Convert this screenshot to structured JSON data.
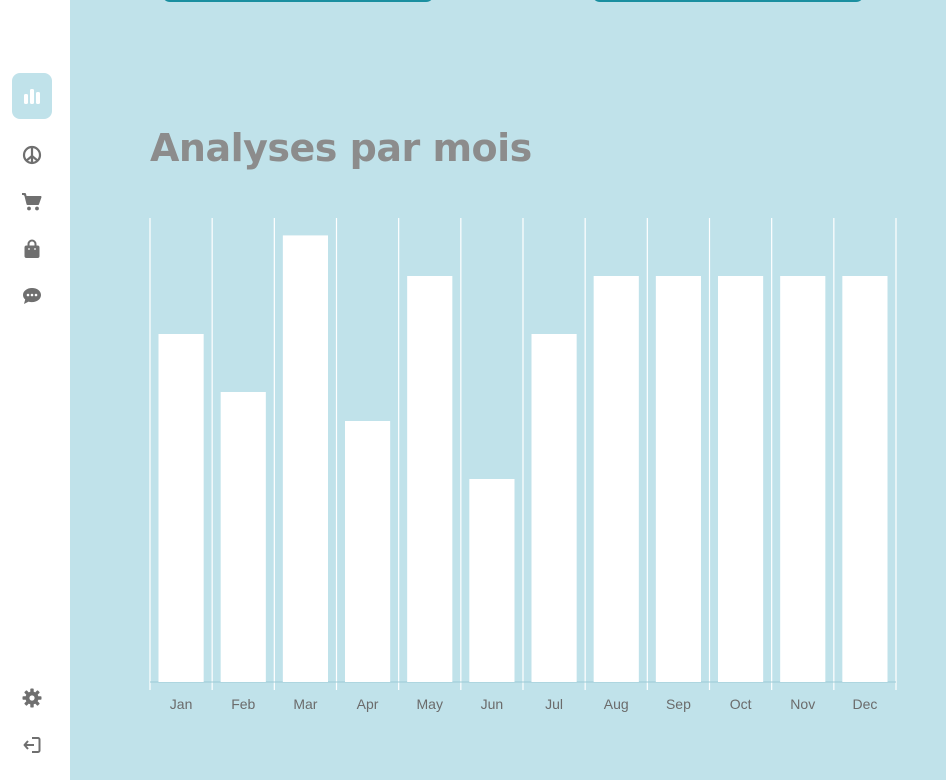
{
  "sidebar": {
    "items": [
      {
        "icon": "bar-chart-icon",
        "active": true
      },
      {
        "icon": "peace-icon"
      },
      {
        "icon": "cart-icon"
      },
      {
        "icon": "shopping-bag-icon"
      },
      {
        "icon": "chat-icon"
      }
    ],
    "bottom_items": [
      {
        "icon": "gear-icon"
      },
      {
        "icon": "logout-icon"
      }
    ]
  },
  "main": {
    "title": "Analyses par mois"
  },
  "colors": {
    "background": "#c0e2ea",
    "bar": "#ffffff",
    "title": "#8c8c8c",
    "accent": "#1a8fa0"
  },
  "chart_data": {
    "type": "bar",
    "categories": [
      "Jan",
      "Feb",
      "Mar",
      "Apr",
      "May",
      "Jun",
      "Jul",
      "Aug",
      "Sep",
      "Oct",
      "Nov",
      "Dec"
    ],
    "values": [
      60,
      50,
      77,
      45,
      70,
      35,
      60,
      70,
      70,
      70,
      70,
      70
    ],
    "ylim": [
      0,
      80
    ],
    "grid": "vertical",
    "legend": "none"
  }
}
